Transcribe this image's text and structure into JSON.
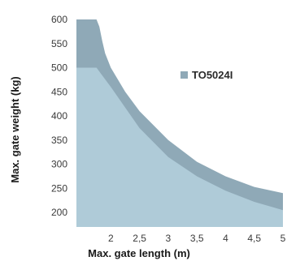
{
  "chart_data": {
    "type": "area",
    "xlabel": "Max. gate length (m)",
    "ylabel": "Max. gate weight (kg)",
    "x_ticks": [
      "2",
      "2,5",
      "3",
      "3,5",
      "4",
      "4,5",
      "5"
    ],
    "x_tick_values": [
      2,
      2.5,
      3,
      3.5,
      4,
      4.5,
      5
    ],
    "y_ticks": [
      "600",
      "550",
      "500",
      "450",
      "400",
      "350",
      "300",
      "250",
      "200"
    ],
    "y_tick_values": [
      600,
      550,
      500,
      450,
      400,
      350,
      300,
      250,
      200
    ],
    "xlim": [
      1.4,
      5
    ],
    "ylim": [
      170,
      600
    ],
    "grid": false,
    "legend_position": "right",
    "series": [
      {
        "name": "TO5024I",
        "color": "#8fa9b7",
        "x": [
          1.4,
          1.75,
          1.8,
          1.85,
          1.9,
          2.0,
          2.25,
          2.5,
          3.0,
          3.5,
          4.0,
          4.5,
          5.0
        ],
        "y": [
          600,
          600,
          585,
          555,
          530,
          500,
          450,
          410,
          350,
          305,
          275,
          253,
          240
        ]
      },
      {
        "name": "",
        "color": "#afcbd8",
        "x": [
          1.4,
          1.75,
          2.0,
          2.5,
          3.0,
          3.5,
          4.0,
          4.5,
          5.0
        ],
        "y": [
          500,
          500,
          460,
          375,
          315,
          275,
          245,
          222,
          205
        ]
      }
    ]
  }
}
